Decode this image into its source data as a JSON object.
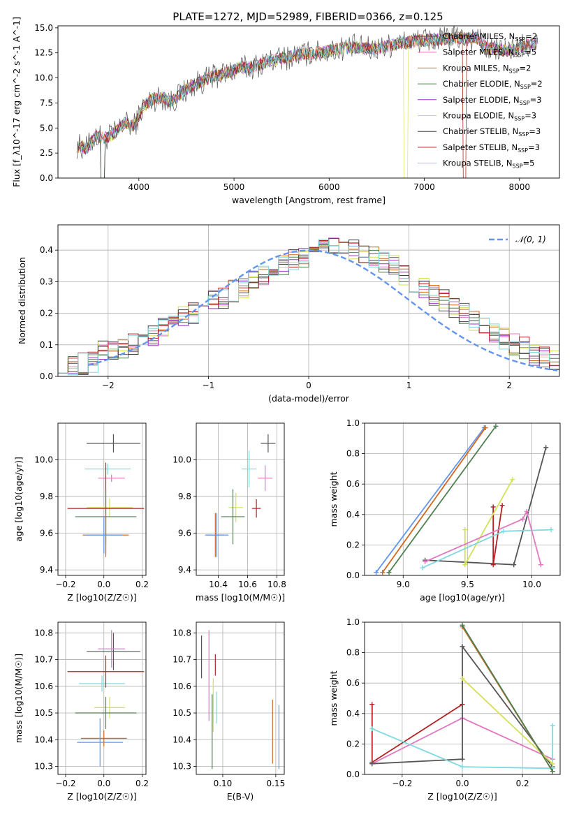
{
  "figure_title": "PLATE=1272, MJD=52989, FIBERID=0366, z=0.125",
  "chart_data": [
    {
      "id": "spectrum",
      "type": "line",
      "title": "PLATE=1272, MJD=52989, FIBERID=0366, z=0.125",
      "xlabel": "wavelength [Angstrom, rest frame]",
      "ylabel": "Flux [f_λ10^-17 erg cm^-2 s^-1 A^-1]",
      "xlim": [
        3150,
        8420
      ],
      "ylim": [
        0,
        15.2
      ],
      "xticks": [
        4000,
        5000,
        6000,
        7000,
        8000
      ],
      "yticks": [
        0.0,
        2.5,
        5.0,
        7.5,
        10.0,
        12.5,
        15.0
      ],
      "grid": false,
      "legend_position": "top-right",
      "legend": [
        {
          "name": "Chabrier MILES, N_SSP=2",
          "color": "#555555"
        },
        {
          "name": "Salpeter MILES, N_SSP=5",
          "color": "#e377c2"
        },
        {
          "name": "Kroupa MILES, N_SSP=2",
          "color": "#d2691e"
        },
        {
          "name": "Chabrier ELODIE, N_SSP=2",
          "color": "#4f7f4f"
        },
        {
          "name": "Salpeter ELODIE, N_SSP=3",
          "color": "#9932cc"
        },
        {
          "name": "Kroupa ELODIE, N_SSP=3",
          "color": "#d4e157"
        },
        {
          "name": "Chabrier STELIB, N_SSP=3",
          "color": "#444444"
        },
        {
          "name": "Salpeter STELIB, N_SSP=3",
          "color": "#b22222"
        },
        {
          "name": "Kroupa STELIB, N_SSP=5",
          "color": "#80d8e0"
        }
      ],
      "x": [
        3350,
        3450,
        3550,
        3650,
        3750,
        3850,
        3950,
        4050,
        4150,
        4250,
        4350,
        4450,
        4550,
        4650,
        4750,
        4850,
        4950,
        5050,
        5150,
        5250,
        5350,
        5450,
        5550,
        5650,
        5750,
        5850,
        5950,
        6050,
        6150,
        6250,
        6350,
        6450,
        6550,
        6650,
        6750,
        6850,
        6950,
        7050,
        7150,
        7250,
        7350,
        7450,
        7550,
        7650,
        7750,
        7850,
        7950,
        8050,
        8150
      ],
      "y": [
        3.2,
        3.0,
        4.2,
        4.0,
        4.5,
        5.5,
        5.2,
        7.2,
        7.9,
        8.0,
        7.6,
        8.5,
        9.2,
        9.6,
        10.0,
        10.3,
        10.6,
        11.0,
        11.0,
        11.3,
        11.6,
        11.8,
        12.0,
        12.3,
        12.4,
        12.5,
        12.6,
        12.8,
        13.0,
        13.1,
        13.0,
        12.9,
        13.0,
        13.3,
        13.5,
        13.6,
        13.7,
        13.8,
        13.8,
        13.9,
        14.0,
        13.9,
        14.1,
        13.0,
        12.9,
        12.7,
        12.9,
        13.2,
        13.4
      ]
    },
    {
      "id": "residuals",
      "type": "line",
      "xlabel": "(data-model)/error",
      "ylabel": "Normed distribution",
      "xlim": [
        -2.5,
        2.5
      ],
      "ylim": [
        0,
        0.48
      ],
      "xticks": [
        -2,
        -1,
        0,
        1,
        2
      ],
      "yticks": [
        0.0,
        0.1,
        0.2,
        0.3,
        0.4
      ],
      "grid": true,
      "legend_position": "top-right",
      "series": [
        {
          "name": "𝒩(0, 1)",
          "color": "#6495ed",
          "style": "dashed"
        }
      ],
      "bin_width": 0.1,
      "histogram_sample": [
        0.045,
        0.035,
        0.04,
        0.045,
        0.08,
        0.08,
        0.09,
        0.1,
        0.11,
        0.13,
        0.15,
        0.16,
        0.19,
        0.2,
        0.22,
        0.24,
        0.25,
        0.27,
        0.28,
        0.3,
        0.32,
        0.33,
        0.35,
        0.37,
        0.38,
        0.4,
        0.41,
        0.42,
        0.41,
        0.4,
        0.39,
        0.38,
        0.36,
        0.35,
        0.32,
        0.3,
        0.28,
        0.26,
        0.24,
        0.22,
        0.2,
        0.18,
        0.16,
        0.14,
        0.12,
        0.1,
        0.09,
        0.07,
        0.06,
        0.05
      ]
    },
    {
      "id": "age-vs-z",
      "type": "scatter",
      "xlabel": "Z [log10(Z/Z☉)]",
      "ylabel": "age  [log10(age/yr)]",
      "xlim": [
        -0.24,
        0.22
      ],
      "ylim": [
        9.37,
        10.2
      ],
      "xticks": [
        -0.2,
        0.0,
        0.2
      ],
      "yticks": [
        9.4,
        9.6,
        9.8,
        10.0
      ],
      "grid": true,
      "points": [
        {
          "x": 0.05,
          "y": 10.09,
          "xerr": 0.14,
          "yerr": 0.05,
          "color": "#555555"
        },
        {
          "x": 0.02,
          "y": 9.95,
          "xerr": 0.12,
          "yerr": 0.03,
          "color": "#80d8e0"
        },
        {
          "x": 0.04,
          "y": 9.9,
          "xerr": 0.07,
          "yerr": 0.02,
          "color": "#e377c2"
        },
        {
          "x": 0.03,
          "y": 9.74,
          "xerr": 0.12,
          "yerr": 0.05,
          "color": "#d4e157"
        },
        {
          "x": 0.01,
          "y": 9.735,
          "xerr": 0.2,
          "yerr": 0.25,
          "color": "#b22222"
        },
        {
          "x": 0.01,
          "y": 9.69,
          "xerr": 0.16,
          "yerr": 0.15,
          "color": "#4f7f4f"
        },
        {
          "x": 0.01,
          "y": 9.59,
          "xerr": 0.12,
          "yerr": 0.12,
          "color": "#d2691e"
        },
        {
          "x": 0.0,
          "y": 9.59,
          "xerr": 0.1,
          "yerr": 0.1,
          "color": "#6495ed"
        }
      ]
    },
    {
      "id": "age-vs-mass",
      "type": "scatter",
      "xlabel": "mass [log10(M/M☉)]",
      "ylabel": "",
      "xlim": [
        10.25,
        10.85
      ],
      "ylim": [
        9.37,
        10.2
      ],
      "xticks": [
        10.4,
        10.6,
        10.8
      ],
      "yticks": [
        9.4,
        9.6,
        9.8,
        10.0
      ],
      "grid": true,
      "points": [
        {
          "x": 10.74,
          "y": 10.09,
          "xerr": 0.05,
          "yerr": 0.05,
          "color": "#555555"
        },
        {
          "x": 10.61,
          "y": 9.95,
          "xerr": 0.05,
          "yerr": 0.1,
          "color": "#80d8e0"
        },
        {
          "x": 10.72,
          "y": 9.9,
          "xerr": 0.05,
          "yerr": 0.07,
          "color": "#e377c2"
        },
        {
          "x": 10.52,
          "y": 9.74,
          "xerr": 0.05,
          "yerr": 0.08,
          "color": "#d4e157"
        },
        {
          "x": 10.66,
          "y": 9.735,
          "xerr": 0.03,
          "yerr": 0.05,
          "color": "#b22222"
        },
        {
          "x": 10.5,
          "y": 9.69,
          "xerr": 0.08,
          "yerr": 0.15,
          "color": "#4f7f4f"
        },
        {
          "x": 10.38,
          "y": 9.59,
          "xerr": 0.06,
          "yerr": 0.12,
          "color": "#d2691e"
        },
        {
          "x": 10.39,
          "y": 9.59,
          "xerr": 0.08,
          "yerr": 0.12,
          "color": "#6495ed"
        }
      ]
    },
    {
      "id": "weight-vs-age",
      "type": "line",
      "xlabel": "age  [log10(age/yr)]",
      "ylabel": "mass weight",
      "xlim": [
        8.7,
        10.22
      ],
      "ylim": [
        0,
        1.0
      ],
      "xticks": [
        9.0,
        9.5,
        10.0
      ],
      "yticks": [
        0.0,
        0.2,
        0.4,
        0.6,
        0.8,
        1.0
      ],
      "grid": true,
      "series": [
        {
          "color": "#6495ed",
          "x": [
            8.79,
            9.63
          ],
          "y": [
            0.02,
            0.97
          ]
        },
        {
          "color": "#d2691e",
          "x": [
            8.84,
            9.64
          ],
          "y": [
            0.02,
            0.97
          ]
        },
        {
          "color": "#4f7f4f",
          "x": [
            8.89,
            9.72
          ],
          "y": [
            0.02,
            0.98
          ]
        },
        {
          "color": "#555555",
          "x": [
            9.17,
            9.86,
            10.11
          ],
          "y": [
            0.1,
            0.07,
            0.84
          ]
        },
        {
          "color": "#b22222",
          "x": [
            9.7,
            9.7,
            9.77
          ],
          "y": [
            0.45,
            0.07,
            0.46
          ]
        },
        {
          "color": "#d4e157",
          "x": [
            9.48,
            9.48,
            9.85
          ],
          "y": [
            0.3,
            0.07,
            0.63
          ]
        },
        {
          "color": "#80d8e0",
          "x": [
            9.15,
            9.78,
            10.15
          ],
          "y": [
            0.05,
            0.29,
            0.3
          ]
        },
        {
          "color": "#e377c2",
          "x": [
            9.17,
            9.93,
            9.96,
            10.07
          ],
          "y": [
            0.09,
            0.37,
            0.42,
            0.07
          ]
        }
      ]
    },
    {
      "id": "mass-vs-z",
      "type": "scatter",
      "xlabel": "Z [log10(Z/Z☉)]",
      "ylabel": "mass [log10(M/M☉)]",
      "xlim": [
        -0.24,
        0.22
      ],
      "ylim": [
        10.27,
        10.84
      ],
      "xticks": [
        -0.2,
        0.0,
        0.2
      ],
      "yticks": [
        10.3,
        10.4,
        10.5,
        10.6,
        10.7,
        10.8
      ],
      "grid": true,
      "points": [
        {
          "x": 0.05,
          "y": 10.73,
          "xerr": 0.14,
          "yerr": 0.07,
          "color": "#555555"
        },
        {
          "x": -0.01,
          "y": 10.61,
          "xerr": 0.12,
          "yerr": 0.03,
          "color": "#80d8e0"
        },
        {
          "x": 0.04,
          "y": 10.74,
          "xerr": 0.07,
          "yerr": 0.07,
          "color": "#e377c2"
        },
        {
          "x": 0.03,
          "y": 10.52,
          "xerr": 0.08,
          "yerr": 0.04,
          "color": "#d4e157"
        },
        {
          "x": 0.01,
          "y": 10.655,
          "xerr": 0.2,
          "yerr": 0.06,
          "color": "#b22222"
        },
        {
          "x": 0.01,
          "y": 10.5,
          "xerr": 0.16,
          "yerr": 0.06,
          "color": "#4f7f4f"
        },
        {
          "x": 0.0,
          "y": 10.405,
          "xerr": 0.12,
          "yerr": 0.03,
          "color": "#d2691e"
        },
        {
          "x": -0.02,
          "y": 10.39,
          "xerr": 0.12,
          "yerr": 0.09,
          "color": "#6495ed"
        }
      ]
    },
    {
      "id": "mass-vs-ebv",
      "type": "scatter",
      "xlabel": "E(B-V)",
      "ylabel": "",
      "xlim": [
        0.075,
        0.158
      ],
      "ylim": [
        10.27,
        10.84
      ],
      "xticks": [
        0.1,
        0.15
      ],
      "yticks": [
        10.3,
        10.4,
        10.5,
        10.6,
        10.7,
        10.8
      ],
      "grid": true,
      "points": [
        {
          "x": 0.08,
          "y": 10.71,
          "yerr": 0.08,
          "color": "#555555"
        },
        {
          "x": 0.087,
          "y": 10.64,
          "yerr": 0.17,
          "color": "#e377c2"
        },
        {
          "x": 0.09,
          "y": 10.43,
          "yerr": 0.14,
          "color": "#4f7f4f"
        },
        {
          "x": 0.091,
          "y": 10.53,
          "yerr": 0.1,
          "color": "#d4e157"
        },
        {
          "x": 0.093,
          "y": 10.68,
          "yerr": 0.04,
          "color": "#b22222"
        },
        {
          "x": 0.094,
          "y": 10.52,
          "yerr": 0.06,
          "color": "#80d8e0"
        },
        {
          "x": 0.147,
          "y": 10.43,
          "yerr": 0.12,
          "color": "#d2691e"
        },
        {
          "x": 0.153,
          "y": 10.41,
          "yerr": 0.12,
          "color": "#6495ed"
        }
      ]
    },
    {
      "id": "weight-vs-z",
      "type": "line",
      "xlabel": "Z [log10(Z/Z☉)]",
      "ylabel": "mass weight",
      "xlim": [
        -0.325,
        0.325
      ],
      "ylim": [
        0,
        1.0
      ],
      "xticks": [
        -0.2,
        0.0,
        0.2
      ],
      "yticks": [
        0.0,
        0.2,
        0.4,
        0.6,
        0.8,
        1.0
      ],
      "grid": true,
      "series": [
        {
          "color": "#b22222",
          "x": [
            -0.3,
            -0.3,
            0.0,
            0.0
          ],
          "y": [
            0.46,
            0.08,
            0.46,
            0.46
          ]
        },
        {
          "color": "#e377c2",
          "x": [
            -0.3,
            0.0,
            0.3
          ],
          "y": [
            0.07,
            0.37,
            0.1
          ]
        },
        {
          "color": "#555555",
          "x": [
            -0.3,
            0.0,
            0.0,
            0.3
          ],
          "y": [
            0.07,
            0.1,
            0.84,
            0.05
          ]
        },
        {
          "color": "#80d8e0",
          "x": [
            -0.3,
            0.0,
            0.3,
            0.3
          ],
          "y": [
            0.3,
            0.05,
            0.04,
            0.32
          ]
        },
        {
          "color": "#d2691e",
          "x": [
            0.0,
            0.3
          ],
          "y": [
            0.97,
            0.02
          ]
        },
        {
          "color": "#d4e157",
          "x": [
            0.0,
            0.3
          ],
          "y": [
            0.63,
            0.07
          ]
        },
        {
          "color": "#4f7f4f",
          "x": [
            0.0,
            0.3
          ],
          "y": [
            0.98,
            0.02
          ]
        }
      ]
    }
  ]
}
